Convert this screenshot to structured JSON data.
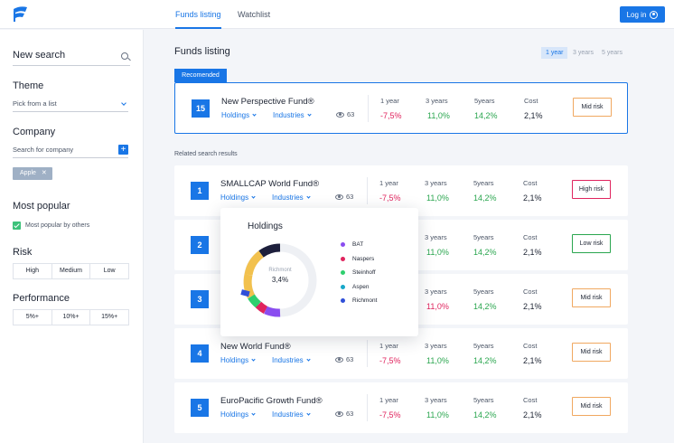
{
  "header": {
    "tabs": [
      {
        "label": "Funds listing",
        "active": true
      },
      {
        "label": "Watchlist",
        "active": false
      }
    ],
    "login_label": "Log in"
  },
  "sidebar": {
    "search": {
      "label": "New search"
    },
    "theme": {
      "title": "Theme",
      "select": "Pick from a list"
    },
    "company": {
      "title": "Company",
      "placeholder": "Search for company",
      "add": "+",
      "chip": "Apple"
    },
    "most_popular": {
      "title": "Most popular",
      "checkbox": "Most popular by others",
      "checked": true
    },
    "risk": {
      "title": "Risk",
      "options": [
        "High",
        "Medium",
        "Low"
      ]
    },
    "performance": {
      "title": "Performance",
      "options": [
        "5%+",
        "10%+",
        "15%+"
      ]
    }
  },
  "main": {
    "title": "Funds listing",
    "periods": [
      "1 year",
      "3 years",
      "5 years"
    ],
    "recommended_label": "Recomended",
    "related_title": "Related search results",
    "recommended": {
      "num": "15",
      "name": "New Perspective Fund®",
      "holdings": "Holdings",
      "industries": "Industries",
      "views": "63",
      "y1": "-7,5%",
      "y3": "11,0%",
      "y5": "14,2%",
      "cost": "2,1%",
      "risk": "Mid risk"
    },
    "stat_labels": {
      "y1": "1 year",
      "y3": "3 years",
      "y5": "5years",
      "cost": "Cost"
    },
    "funds": [
      {
        "num": "1",
        "name": "SMALLCAP World Fund®",
        "holdings": "Holdings",
        "industries": "Industries",
        "views": "63",
        "y1": "-7,5%",
        "y3": "11,0%",
        "y5": "14,2%",
        "cost": "2,1%",
        "risk": "High risk"
      },
      {
        "num": "2",
        "name": "",
        "holdings": "",
        "industries": "",
        "views": "",
        "y1": "",
        "y3": "11,0%",
        "y5": "14,2%",
        "cost": "2,1%",
        "risk": "Low risk"
      },
      {
        "num": "3",
        "name": "",
        "holdings": "",
        "industries": "",
        "views": "",
        "y1": "",
        "y3": "11,0%",
        "y5": "14,2%",
        "cost": "2,1%",
        "risk": "Mid risk"
      },
      {
        "num": "4",
        "name": "New World Fund®",
        "holdings": "Holdings",
        "industries": "Industries",
        "views": "63",
        "y1": "-7,5%",
        "y3": "11,0%",
        "y5": "14,2%",
        "cost": "2,1%",
        "risk": "Mid risk"
      },
      {
        "num": "5",
        "name": "EuroPacific Growth Fund®",
        "holdings": "Holdings",
        "industries": "Industries",
        "views": "63",
        "y1": "-7,5%",
        "y3": "11,0%",
        "y5": "14,2%",
        "cost": "2,1%",
        "risk": "Mid risk"
      }
    ]
  },
  "popup": {
    "title": "Holdings",
    "center_label": "Richmont",
    "center_value": "3,4%",
    "legend": [
      {
        "name": "BAT",
        "color": "#8a4df0"
      },
      {
        "name": "Naspers",
        "color": "#e0245e"
      },
      {
        "name": "Steinhoff",
        "color": "#2ecf6e"
      },
      {
        "name": "Aspen",
        "color": "#17a7c9"
      },
      {
        "name": "Richmont",
        "color": "#2f4fd8"
      }
    ]
  },
  "colors": {
    "accent": "#1976e6",
    "negative": "#e0245e",
    "positive": "#2aa64f",
    "mid_risk": "#f0a860"
  }
}
